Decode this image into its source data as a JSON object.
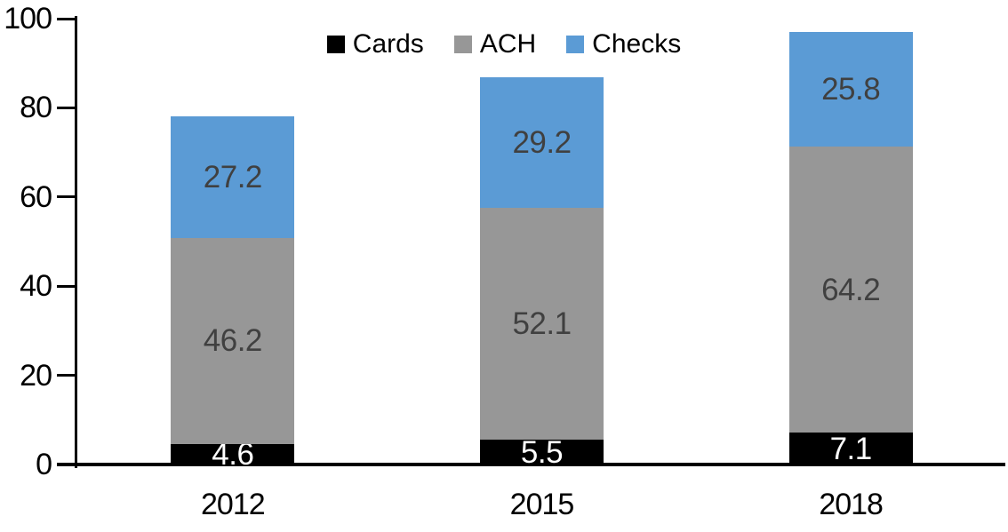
{
  "chart_data": {
    "type": "bar",
    "variant": "stacked-column",
    "title": "",
    "xlabel": "",
    "ylabel": "",
    "categories": [
      "2012",
      "2015",
      "2018"
    ],
    "series": [
      {
        "name": "Cards",
        "color": "#000000",
        "label_color": "#ffffff",
        "values": [
          4.6,
          5.5,
          7.1
        ]
      },
      {
        "name": "ACH",
        "color": "#979797",
        "label_color": "#404040",
        "values": [
          46.2,
          52.1,
          64.2
        ]
      },
      {
        "name": "Checks",
        "color": "#5B9BD5",
        "label_color": "#404040",
        "values": [
          27.2,
          29.2,
          25.8
        ]
      }
    ],
    "y_ticks": [
      0,
      20,
      40,
      60,
      80,
      100
    ],
    "ylim": [
      0,
      100
    ],
    "grid": false,
    "legend_position": "top-center",
    "axis_color": "#000000",
    "background": "#ffffff",
    "data_labels_shown": true
  }
}
